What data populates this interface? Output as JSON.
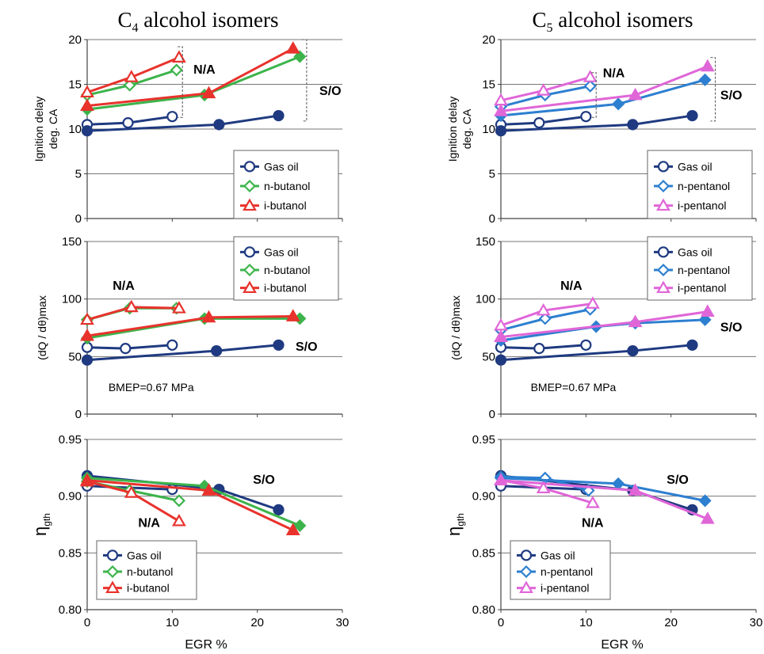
{
  "titles": {
    "left": {
      "base": "C",
      "sub": "4",
      "rest": " alcohol isomers"
    },
    "right": {
      "base": "C",
      "sub": "5",
      "rest": " alcohol isomers"
    }
  },
  "colors": {
    "gas_oil": "#1f3a80",
    "n_butanol": "#3cb44b",
    "i_butanol": "#e8322c",
    "n_pentanol": "#2d7fd0",
    "i_pentanol": "#e066d8"
  },
  "xlabel": "EGR %",
  "chart_data": [
    {
      "type": "line",
      "column": "left",
      "row": 0,
      "ylabel": [
        "Ignition delay",
        "deg. CA"
      ],
      "xlim": [
        0,
        30
      ],
      "ylim": [
        0,
        20
      ],
      "xticks": [
        0,
        10,
        20,
        30
      ],
      "yticks": [
        0,
        5,
        10,
        15,
        20
      ],
      "grid": true,
      "legend": "bottom-right",
      "series": [
        {
          "name": "Gas oil",
          "color": "gas_oil",
          "marker": "circle",
          "fill": "open",
          "x": [
            0,
            4.8,
            10
          ],
          "y": [
            10.5,
            10.7,
            11.4
          ]
        },
        {
          "name": "",
          "color": "gas_oil",
          "marker": "circle",
          "fill": "solid",
          "x": [
            0,
            15.5,
            22.5
          ],
          "y": [
            9.8,
            10.5,
            11.5
          ]
        },
        {
          "name": "n-butanol",
          "color": "n_butanol",
          "marker": "diamond",
          "fill": "open",
          "x": [
            0,
            5,
            10.5
          ],
          "y": [
            13.8,
            14.9,
            16.6
          ]
        },
        {
          "name": "",
          "color": "n_butanol",
          "marker": "diamond",
          "fill": "solid",
          "x": [
            0,
            13.8,
            25
          ],
          "y": [
            12.2,
            13.8,
            18.1
          ]
        },
        {
          "name": "i-butanol",
          "color": "i_butanol",
          "marker": "triangle",
          "fill": "open",
          "x": [
            0,
            5.2,
            10.8
          ],
          "y": [
            14.1,
            15.8,
            18.0
          ]
        },
        {
          "name": "",
          "color": "i_butanol",
          "marker": "triangle",
          "fill": "solid",
          "x": [
            0,
            14.3,
            24.2
          ],
          "y": [
            12.6,
            14.0,
            19.0
          ]
        }
      ],
      "annotations": [
        {
          "text": "N/A",
          "x": 12.5,
          "y": 16.2,
          "bracket": {
            "x": 11.2,
            "y0": 11.3,
            "y1": 19.2
          }
        },
        {
          "text": "S/O",
          "x": 27.3,
          "y": 13.8,
          "bracket": {
            "x": 25.8,
            "y0": 10.9,
            "y1": 20.0
          }
        }
      ]
    },
    {
      "type": "line",
      "column": "left",
      "row": 1,
      "ylabel": [
        "(dQ / dθ)max"
      ],
      "xlim": [
        0,
        30
      ],
      "ylim": [
        0,
        150
      ],
      "xticks": [
        0,
        10,
        20,
        30
      ],
      "yticks": [
        0,
        50,
        100,
        150
      ],
      "grid": true,
      "legend": "top-right",
      "series": [
        {
          "name": "Gas oil",
          "color": "gas_oil",
          "marker": "circle",
          "fill": "open",
          "x": [
            0,
            4.5,
            10
          ],
          "y": [
            58,
            57,
            60
          ]
        },
        {
          "name": "",
          "color": "gas_oil",
          "marker": "circle",
          "fill": "solid",
          "x": [
            0,
            15.2,
            22.5
          ],
          "y": [
            47,
            55,
            60
          ]
        },
        {
          "name": "n-butanol",
          "color": "n_butanol",
          "marker": "diamond",
          "fill": "open",
          "x": [
            0,
            5,
            10.5
          ],
          "y": [
            82,
            92,
            92
          ]
        },
        {
          "name": "",
          "color": "n_butanol",
          "marker": "diamond",
          "fill": "solid",
          "x": [
            0,
            13.8,
            25
          ],
          "y": [
            66,
            83,
            83
          ]
        },
        {
          "name": "i-butanol",
          "color": "i_butanol",
          "marker": "triangle",
          "fill": "open",
          "x": [
            0,
            5.2,
            10.8
          ],
          "y": [
            82,
            93,
            92
          ]
        },
        {
          "name": "",
          "color": "i_butanol",
          "marker": "triangle",
          "fill": "solid",
          "x": [
            0,
            14.3,
            24.2
          ],
          "y": [
            68,
            84,
            85
          ]
        }
      ],
      "annotations": [
        {
          "text": "N/A",
          "x": 3,
          "y": 108
        },
        {
          "text": "S/O",
          "x": 24.5,
          "y": 55
        }
      ],
      "note": {
        "text": "BMEP=0.67 MPa",
        "x": 2.5,
        "y": 20
      }
    },
    {
      "type": "line",
      "column": "left",
      "row": 2,
      "ylabel": [
        "η",
        "gth"
      ],
      "xlim": [
        0,
        30
      ],
      "ylim": [
        0.8,
        0.95
      ],
      "xticks": [
        0,
        10,
        20,
        30
      ],
      "yticks": [
        0.8,
        0.85,
        0.9,
        0.95
      ],
      "grid": true,
      "legend": "bottom-left",
      "series": [
        {
          "name": "Gas oil",
          "color": "gas_oil",
          "marker": "circle",
          "fill": "open",
          "x": [
            0,
            10
          ],
          "y": [
            0.909,
            0.906
          ]
        },
        {
          "name": "",
          "color": "gas_oil",
          "marker": "circle",
          "fill": "solid",
          "x": [
            0,
            15.5,
            22.5
          ],
          "y": [
            0.918,
            0.906,
            0.888
          ]
        },
        {
          "name": "n-butanol",
          "color": "n_butanol",
          "marker": "diamond",
          "fill": "open",
          "x": [
            0,
            5,
            10.8
          ],
          "y": [
            0.913,
            0.905,
            0.896
          ]
        },
        {
          "name": "",
          "color": "n_butanol",
          "marker": "diamond",
          "fill": "solid",
          "x": [
            0,
            13.8,
            25
          ],
          "y": [
            0.916,
            0.909,
            0.874
          ]
        },
        {
          "name": "i-butanol",
          "color": "i_butanol",
          "marker": "triangle",
          "fill": "open",
          "x": [
            0,
            5.2,
            10.8
          ],
          "y": [
            0.913,
            0.903,
            0.878
          ]
        },
        {
          "name": "",
          "color": "i_butanol",
          "marker": "triangle",
          "fill": "solid",
          "x": [
            0,
            14.3,
            24.2
          ],
          "y": [
            0.914,
            0.905,
            0.87
          ]
        }
      ],
      "annotations": [
        {
          "text": "S/O",
          "x": 19.5,
          "y": 0.911
        },
        {
          "text": "N/A",
          "x": 6,
          "y": 0.873
        }
      ]
    },
    {
      "type": "line",
      "column": "right",
      "row": 0,
      "ylabel": [
        "Ignition delay",
        "deg. CA"
      ],
      "xlim": [
        0,
        30
      ],
      "ylim": [
        0,
        20
      ],
      "xticks": [
        0,
        10,
        20,
        30
      ],
      "yticks": [
        0,
        5,
        10,
        15,
        20
      ],
      "grid": true,
      "legend": "bottom-right",
      "series": [
        {
          "name": "Gas oil",
          "color": "gas_oil",
          "marker": "circle",
          "fill": "open",
          "x": [
            0,
            4.5,
            10
          ],
          "y": [
            10.5,
            10.7,
            11.4
          ]
        },
        {
          "name": "",
          "color": "gas_oil",
          "marker": "circle",
          "fill": "solid",
          "x": [
            0,
            15.5,
            22.5
          ],
          "y": [
            9.8,
            10.5,
            11.5
          ]
        },
        {
          "name": "n-pentanol",
          "color": "n_pentanol",
          "marker": "diamond",
          "fill": "open",
          "x": [
            0,
            5.2,
            10.5
          ],
          "y": [
            12.5,
            13.8,
            14.8
          ]
        },
        {
          "name": "",
          "color": "n_pentanol",
          "marker": "diamond",
          "fill": "solid",
          "x": [
            0,
            13.8,
            24
          ],
          "y": [
            11.5,
            12.8,
            15.5
          ]
        },
        {
          "name": "i-pentanol",
          "color": "i_pentanol",
          "marker": "triangle",
          "fill": "open",
          "x": [
            0,
            5,
            10.5
          ],
          "y": [
            13.2,
            14.3,
            15.8
          ]
        },
        {
          "name": "",
          "color": "i_pentanol",
          "marker": "triangle",
          "fill": "solid",
          "x": [
            0,
            15.8,
            24.3
          ],
          "y": [
            12.0,
            13.8,
            17.0
          ]
        }
      ],
      "annotations": [
        {
          "text": "N/A",
          "x": 12,
          "y": 15.8,
          "bracket": {
            "x": 11.2,
            "y0": 11.3,
            "y1": 16.3
          }
        },
        {
          "text": "S/O",
          "x": 25.8,
          "y": 13.3,
          "bracket": {
            "x": 25.2,
            "y0": 10.9,
            "y1": 18.0
          }
        }
      ]
    },
    {
      "type": "line",
      "column": "right",
      "row": 1,
      "ylabel": [
        "(dQ / dθ)max"
      ],
      "xlim": [
        0,
        30
      ],
      "ylim": [
        0,
        150
      ],
      "xticks": [
        0,
        10,
        20,
        30
      ],
      "yticks": [
        0,
        50,
        100,
        150
      ],
      "grid": true,
      "legend": "top-right",
      "series": [
        {
          "name": "Gas oil",
          "color": "gas_oil",
          "marker": "circle",
          "fill": "open",
          "x": [
            0,
            4.5,
            10
          ],
          "y": [
            58,
            57,
            60
          ]
        },
        {
          "name": "",
          "color": "gas_oil",
          "marker": "circle",
          "fill": "solid",
          "x": [
            0,
            15.5,
            22.5
          ],
          "y": [
            47,
            55,
            60
          ]
        },
        {
          "name": "n-pentanol",
          "color": "n_pentanol",
          "marker": "diamond",
          "fill": "open",
          "x": [
            0,
            5.2,
            10.5
          ],
          "y": [
            73,
            83,
            91
          ]
        },
        {
          "name": "",
          "color": "n_pentanol",
          "marker": "diamond",
          "fill": "solid",
          "x": [
            0,
            11.2,
            15.8,
            24
          ],
          "y": [
            64,
            76,
            79,
            82
          ]
        },
        {
          "name": "i-pentanol",
          "color": "i_pentanol",
          "marker": "triangle",
          "fill": "open",
          "x": [
            0,
            5,
            10.8
          ],
          "y": [
            77,
            90,
            96
          ]
        },
        {
          "name": "",
          "color": "i_pentanol",
          "marker": "triangle",
          "fill": "solid",
          "x": [
            0,
            15.8,
            24.3
          ],
          "y": [
            67,
            80,
            89
          ]
        }
      ],
      "annotations": [
        {
          "text": "N/A",
          "x": 7,
          "y": 108
        },
        {
          "text": "S/O",
          "x": 25.8,
          "y": 72
        }
      ],
      "note": {
        "text": "BMEP=0.67 MPa",
        "x": 3.5,
        "y": 20
      }
    },
    {
      "type": "line",
      "column": "right",
      "row": 2,
      "ylabel": [
        "η",
        "gth"
      ],
      "xlim": [
        0,
        30
      ],
      "ylim": [
        0.8,
        0.95
      ],
      "xticks": [
        0,
        10,
        20,
        30
      ],
      "yticks": [
        0.8,
        0.85,
        0.9,
        0.95
      ],
      "grid": true,
      "legend": "bottom-left",
      "series": [
        {
          "name": "Gas oil",
          "color": "gas_oil",
          "marker": "circle",
          "fill": "open",
          "x": [
            0,
            10
          ],
          "y": [
            0.909,
            0.906
          ]
        },
        {
          "name": "",
          "color": "gas_oil",
          "marker": "circle",
          "fill": "solid",
          "x": [
            0,
            15.5,
            22.5
          ],
          "y": [
            0.918,
            0.905,
            0.888
          ]
        },
        {
          "name": "n-pentanol",
          "color": "n_pentanol",
          "marker": "diamond",
          "fill": "open",
          "x": [
            0,
            5.2,
            10.3
          ],
          "y": [
            0.917,
            0.916,
            0.905
          ]
        },
        {
          "name": "",
          "color": "n_pentanol",
          "marker": "diamond",
          "fill": "solid",
          "x": [
            0,
            13.8,
            24
          ],
          "y": [
            0.916,
            0.911,
            0.896
          ]
        },
        {
          "name": "i-pentanol",
          "color": "i_pentanol",
          "marker": "triangle",
          "fill": "open",
          "x": [
            0,
            5,
            10.8
          ],
          "y": [
            0.914,
            0.907,
            0.894
          ]
        },
        {
          "name": "",
          "color": "i_pentanol",
          "marker": "triangle",
          "fill": "solid",
          "x": [
            0,
            15.8,
            24.3
          ],
          "y": [
            0.914,
            0.905,
            0.88
          ]
        }
      ],
      "annotations": [
        {
          "text": "S/O",
          "x": 19.5,
          "y": 0.911
        },
        {
          "text": "N/A",
          "x": 9.5,
          "y": 0.873
        }
      ]
    }
  ]
}
